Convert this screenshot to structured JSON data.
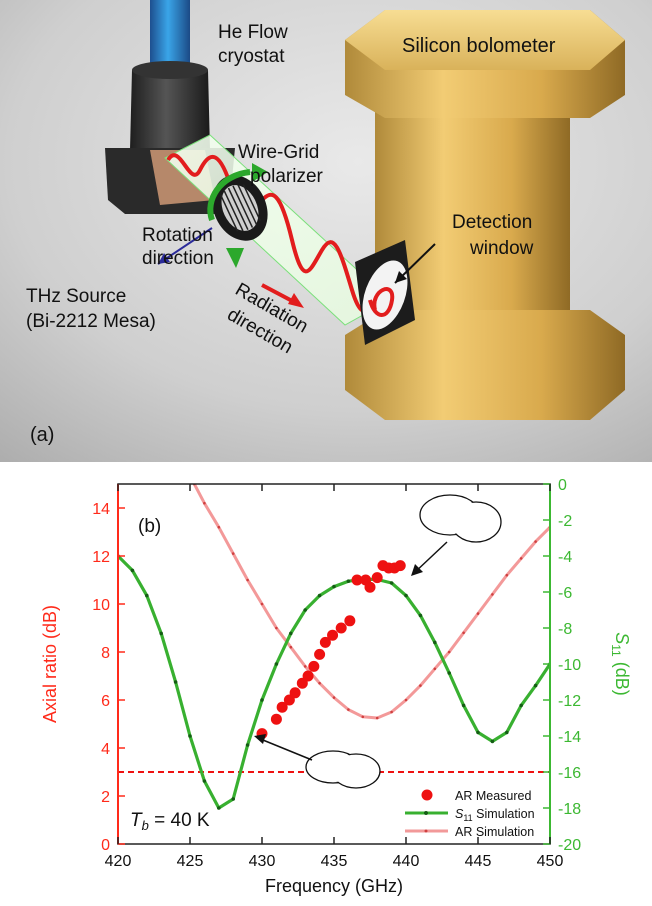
{
  "panel_a": {
    "panel_label": "(a)",
    "labels": {
      "cryostat_1": "He Flow",
      "cryostat_2": "cryostat",
      "bolometer": "Silicon bolometer",
      "polarizer_1": "Wire-Grid",
      "polarizer_2": "polarizer",
      "rotation_1": "Rotation",
      "rotation_2": "direction",
      "detection_1": "Detection",
      "detection_2": "window",
      "source_1": "THz Source",
      "source_2": "(Bi-2212 Mesa)",
      "radiation_1": "Radiation",
      "radiation_2": "direction"
    }
  },
  "chart_data": {
    "type": "line",
    "panel_label": "(b)",
    "annotation_tb": "T_b = 40 K",
    "annotation_tb_sub": "b",
    "annotation_tb_rest": " = 40 K",
    "xlabel": "Frequency (GHz)",
    "ylabel_left": "Axial ratio (dB)",
    "ylabel_right": "S11 (dB)",
    "ylabel_right_main": "S",
    "ylabel_right_sub": "11",
    "ylabel_right_rest": " (dB)",
    "xlim": [
      420,
      450
    ],
    "ylim_left": [
      0,
      15
    ],
    "ylim_right": [
      -20,
      0
    ],
    "xticks": [
      420,
      425,
      430,
      435,
      440,
      445,
      450
    ],
    "yticks_left": [
      0,
      2,
      4,
      6,
      8,
      10,
      12,
      14
    ],
    "yticks_right": [
      0,
      -2,
      -4,
      -6,
      -8,
      -10,
      -12,
      -14,
      -16,
      -18,
      -20
    ],
    "reference_line_left_y": 3,
    "colors": {
      "left_axis": "#ff2a1a",
      "right_axis": "#3cb832",
      "ar_measured": "#ee1111",
      "s11": "#38b030",
      "s11_markers": "#145e14",
      "ar_sim": "#f08080"
    },
    "legend_position": "bottom-right",
    "legend": [
      {
        "label": "AR Measured",
        "kind": "marker"
      },
      {
        "label_main": "S",
        "label_sub": "11",
        "label_rest": " Simulation",
        "kind": "s11"
      },
      {
        "label": "AR Simulation",
        "kind": "arsim"
      }
    ],
    "series": [
      {
        "name": "AR Measured",
        "axis": "left",
        "style": "scatter",
        "x": [
          430.0,
          431.0,
          431.4,
          431.9,
          432.3,
          432.8,
          433.2,
          433.6,
          434.0,
          434.4,
          434.9,
          435.5,
          436.1,
          436.6,
          437.2,
          437.5,
          438.0,
          438.4,
          438.8,
          439.2,
          439.6
        ],
        "y": [
          4.6,
          5.2,
          5.7,
          6.0,
          6.3,
          6.7,
          7.0,
          7.4,
          7.9,
          8.4,
          8.7,
          9.0,
          9.3,
          11.0,
          11.0,
          10.7,
          11.1,
          11.6,
          11.5,
          11.5,
          11.6
        ]
      },
      {
        "name": "S11 Simulation",
        "axis": "right",
        "style": "line-markers",
        "x": [
          420,
          421,
          422,
          423,
          424,
          425,
          426,
          427,
          428,
          429,
          430,
          431,
          432,
          433,
          434,
          435,
          436,
          437,
          438,
          439,
          440,
          441,
          442,
          443,
          444,
          445,
          446,
          447,
          448,
          449,
          450
        ],
        "y": [
          -4.0,
          -4.8,
          -6.2,
          -8.3,
          -11.0,
          -14.0,
          -16.5,
          -18.0,
          -17.5,
          -14.5,
          -12.0,
          -10.0,
          -8.3,
          -7.0,
          -6.2,
          -5.7,
          -5.4,
          -5.3,
          -5.3,
          -5.5,
          -6.2,
          -7.3,
          -8.8,
          -10.5,
          -12.3,
          -13.8,
          -14.3,
          -13.8,
          -12.3,
          -11.2,
          -10.0
        ]
      },
      {
        "name": "AR Simulation",
        "axis": "left",
        "style": "line-markers",
        "x": [
          425.3,
          426,
          427,
          428,
          429,
          430,
          431,
          432,
          433,
          434,
          435,
          436,
          437,
          438,
          439,
          440,
          441,
          442,
          443,
          444,
          445,
          446,
          447,
          448,
          449,
          450
        ],
        "y": [
          15.0,
          14.2,
          13.2,
          12.1,
          11.0,
          10.0,
          9.0,
          8.2,
          7.4,
          6.7,
          6.1,
          5.6,
          5.3,
          5.25,
          5.5,
          6.0,
          6.6,
          7.3,
          8.0,
          8.8,
          9.6,
          10.4,
          11.2,
          11.9,
          12.6,
          13.2
        ]
      }
    ]
  }
}
